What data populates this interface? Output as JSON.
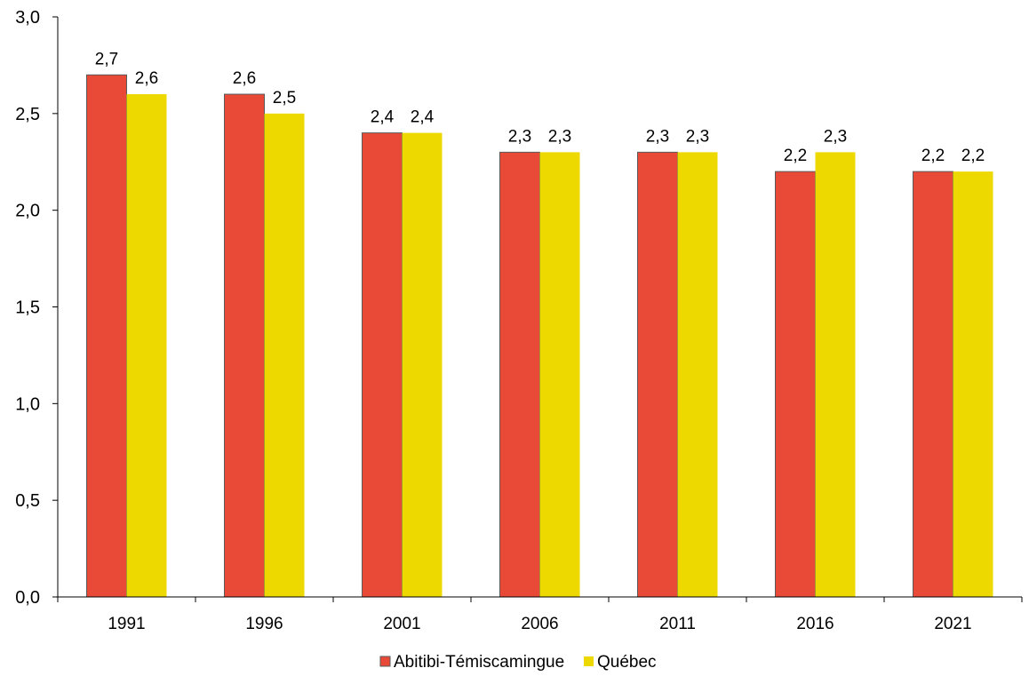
{
  "chart_data": {
    "type": "bar",
    "categories": [
      "1991",
      "1996",
      "2001",
      "2006",
      "2011",
      "2016",
      "2021"
    ],
    "series": [
      {
        "name": "Abitibi-Témiscamingue",
        "color": "#E84A37",
        "values": [
          2.7,
          2.6,
          2.4,
          2.3,
          2.3,
          2.2,
          2.2
        ],
        "labels": [
          "2,7",
          "2,6",
          "2,4",
          "2,3",
          "2,3",
          "2,2",
          "2,2"
        ]
      },
      {
        "name": "Québec",
        "color": "#EDD800",
        "values": [
          2.6,
          2.5,
          2.4,
          2.3,
          2.3,
          2.3,
          2.2
        ],
        "labels": [
          "2,6",
          "2,5",
          "2,4",
          "2,3",
          "2,3",
          "2,3",
          "2,2"
        ]
      }
    ],
    "ylim": [
      0,
      3
    ],
    "yticks": [
      0,
      0.5,
      1,
      1.5,
      2,
      2.5,
      3
    ],
    "ytick_labels": [
      "0,0",
      "0,5",
      "1,0",
      "1,5",
      "2,0",
      "2,5",
      "3,0"
    ],
    "grid": false,
    "legend_position": "bottom"
  }
}
